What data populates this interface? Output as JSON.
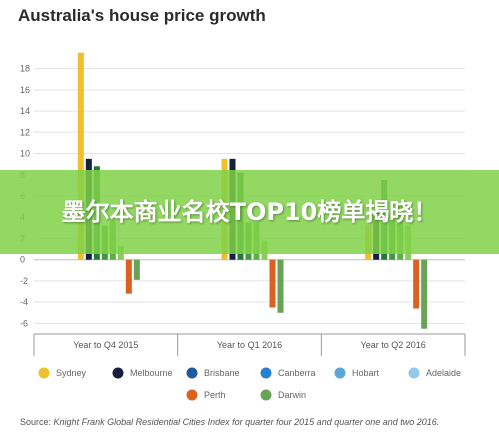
{
  "chart_data": {
    "type": "bar",
    "title": "Australia's house price growth",
    "xlabel": "",
    "ylabel": "",
    "categories": [
      "Year to Q4 2015",
      "Year to Q1 2016",
      "Year to Q2 2016"
    ],
    "yticks": [
      18,
      16,
      14,
      12,
      10,
      8,
      6,
      4,
      2,
      0,
      -2,
      -4,
      -6
    ],
    "ylim": [
      -7,
      19
    ],
    "grid": true,
    "legend": "bottom",
    "series": [
      {
        "name": "Sydney",
        "color": "#f0c02c",
        "values": [
          19.5,
          9.5,
          3.2
        ]
      },
      {
        "name": "Melbourne",
        "color": "#14203c",
        "values": [
          9.5,
          9.5,
          4.5
        ]
      },
      {
        "name": "Brisbane",
        "color": "#1f7a35",
        "values": [
          8.8,
          8.2,
          7.5
        ]
      },
      {
        "name": "Canberra",
        "color": "#3c9a3c",
        "values": [
          3.2,
          3.5,
          3.8
        ]
      },
      {
        "name": "Hobart",
        "color": "#59b045",
        "values": [
          3.7,
          3.5,
          5.2
        ]
      },
      {
        "name": "Adelaide",
        "color": "#8ccd5a",
        "values": [
          1.3,
          1.8,
          3.2
        ]
      },
      {
        "name": "Perth",
        "color": "#d9621e",
        "values": [
          -3.2,
          -4.5,
          -4.6
        ]
      },
      {
        "name": "Darwin",
        "color": "#6aa256",
        "values": [
          -1.9,
          -5.0,
          -6.5
        ]
      }
    ],
    "legend_colors": [
      "#f0c02c",
      "#14203c",
      "#1f5a9c",
      "#2a7fd0",
      "#5ca7d6",
      "#8fcaea",
      "#d9621e",
      "#6aa256"
    ]
  },
  "overlay": {
    "text": "墨尔本商业名校TOP10榜单揭晓！",
    "color": "#80d248"
  },
  "source": {
    "label": "Source:",
    "text": "Knight Frank Global Residential Cities Index for quarter four 2015 and quarter one and two 2016."
  }
}
